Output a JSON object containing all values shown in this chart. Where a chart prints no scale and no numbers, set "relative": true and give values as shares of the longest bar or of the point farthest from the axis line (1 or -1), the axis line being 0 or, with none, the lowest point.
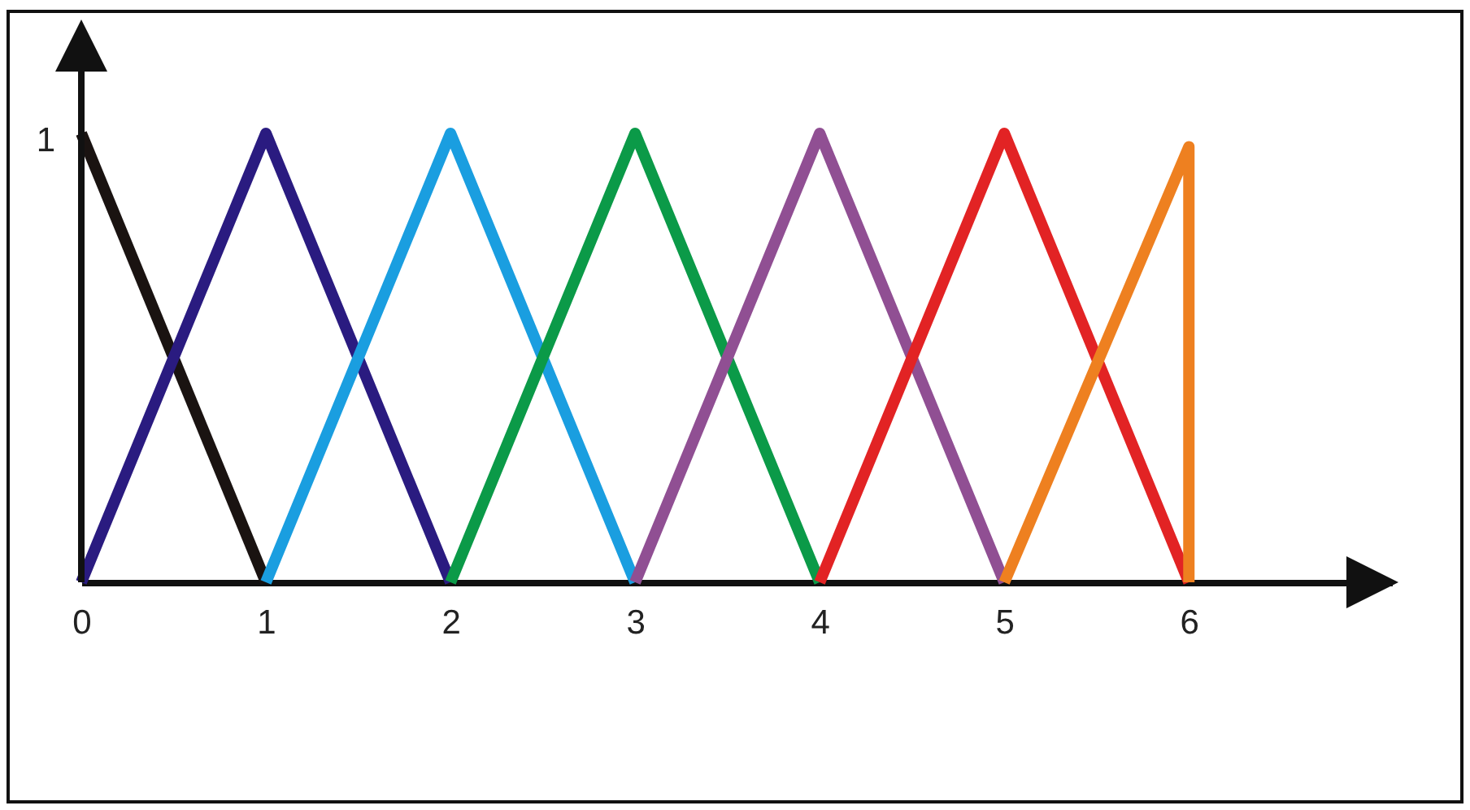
{
  "chart_data": {
    "type": "line",
    "relative": true,
    "xlim": [
      0,
      7.1
    ],
    "xticks": [
      0,
      1,
      2,
      3,
      4,
      5,
      6
    ],
    "line_style": "solid",
    "annotations": [
      {
        "text": "1",
        "x": 0,
        "y": 1
      }
    ],
    "series": [
      {
        "color": "#1a1311",
        "x": [
          0,
          1
        ],
        "values": [
          1,
          0
        ]
      },
      {
        "color": "#2a1b80",
        "x": [
          0,
          1,
          2
        ],
        "values": [
          0,
          1,
          0
        ]
      },
      {
        "color": "#1a9ee0",
        "x": [
          1,
          2,
          3
        ],
        "values": [
          0,
          1,
          0
        ]
      },
      {
        "color": "#0b9a48",
        "x": [
          2,
          3,
          4
        ],
        "values": [
          0,
          1,
          0
        ]
      },
      {
        "color": "#904f93",
        "x": [
          3,
          4,
          5
        ],
        "values": [
          0,
          1,
          0
        ]
      },
      {
        "color": "#e22324",
        "x": [
          4,
          5,
          6
        ],
        "values": [
          0,
          1,
          0
        ]
      },
      {
        "color": "#ee8020",
        "x": [
          5,
          6,
          6
        ],
        "values": [
          0,
          0.97,
          0
        ]
      }
    ]
  }
}
